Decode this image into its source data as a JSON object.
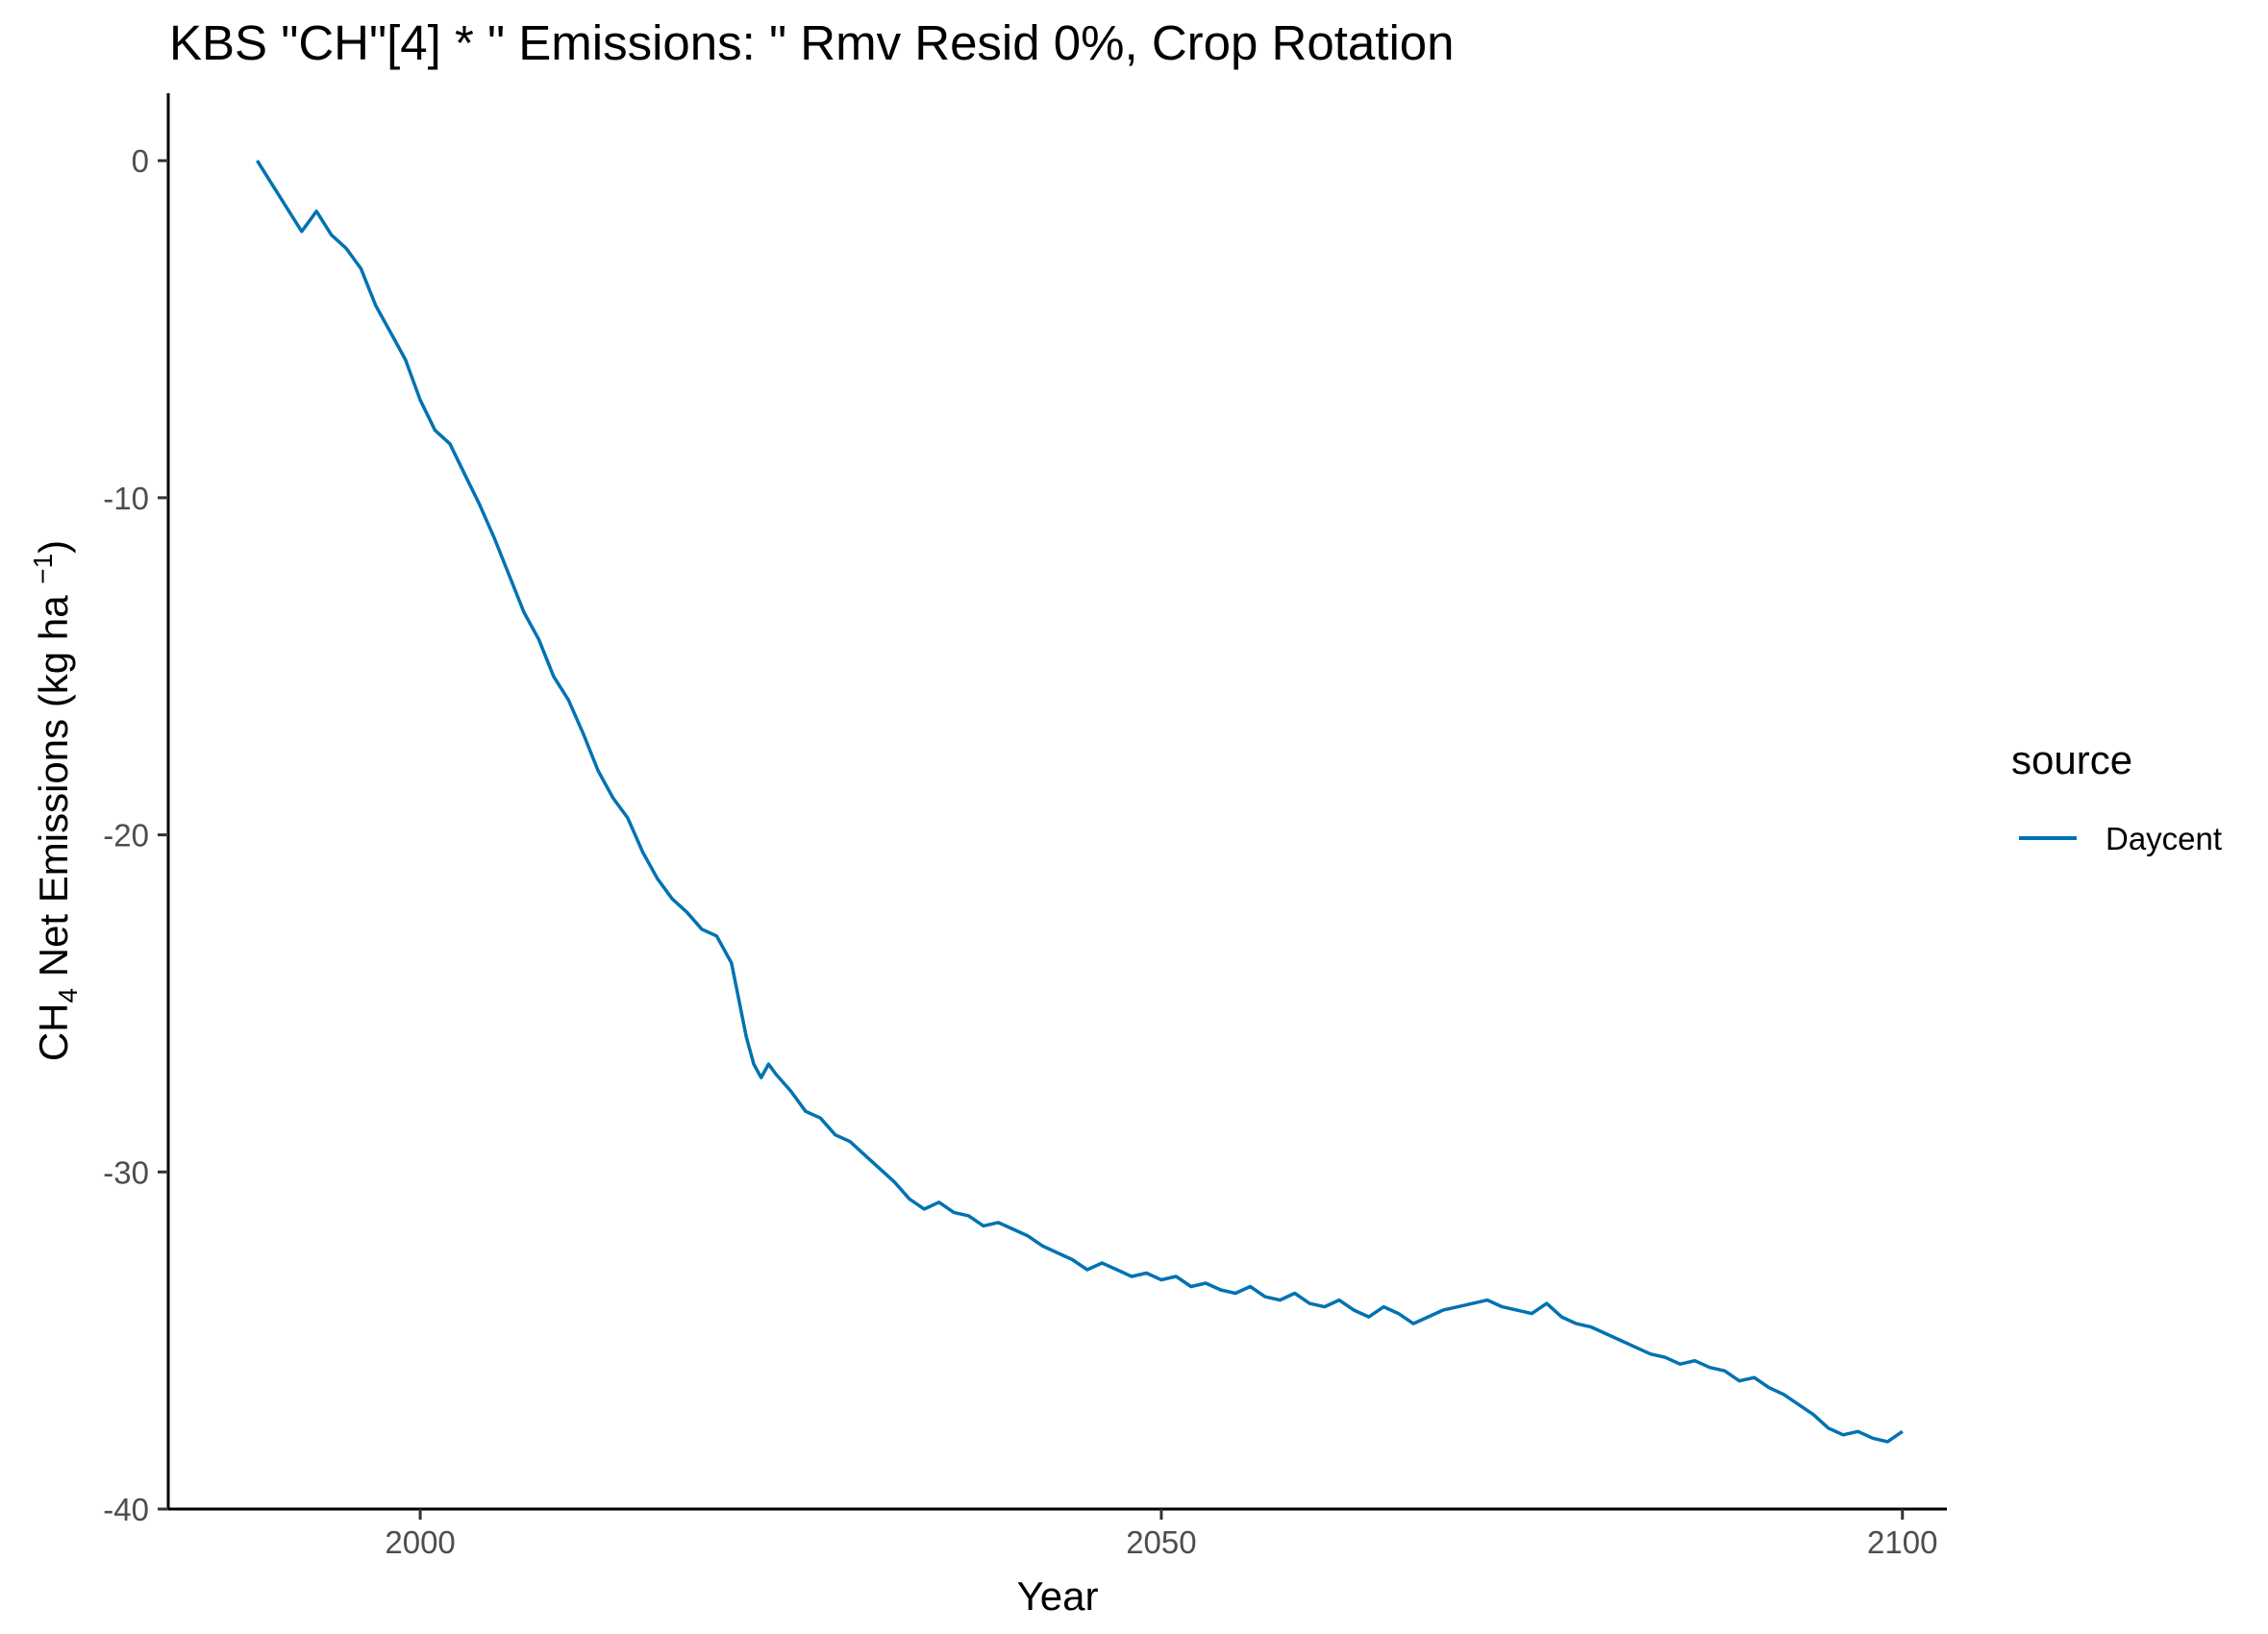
{
  "chart_data": {
    "type": "line",
    "title": "KBS \"CH\"[4] * \" Emissions: \" Rmv Resid 0%, Crop Rotation",
    "xlabel": "Year",
    "ylabel": {
      "main": "CH",
      "sub": "4",
      "rest": " Net Emissions (kg ha ",
      "sup": "−1",
      "close": ")"
    },
    "xlim": [
      1983,
      2103
    ],
    "ylim": [
      -40,
      2
    ],
    "x_ticks": [
      2000,
      2050,
      2100
    ],
    "y_ticks": [
      0,
      -10,
      -20,
      -30,
      -40
    ],
    "x_tick_labels": [
      "2000",
      "2050",
      "2100"
    ],
    "y_tick_labels": [
      "0",
      "-10",
      "-20",
      "-30",
      "-40"
    ],
    "grid": false,
    "legend": {
      "title": "source",
      "position": "right",
      "entries": [
        {
          "label": "Daycent",
          "color": "#0072B2"
        }
      ]
    },
    "series": [
      {
        "name": "Daycent",
        "color": "#0072B2",
        "x": [
          1989,
          1990,
          1991,
          1992,
          1993,
          1994,
          1995,
          1996,
          1997,
          1998,
          1999,
          2000,
          2001,
          2002,
          2003,
          2004,
          2005,
          2006,
          2007,
          2008,
          2009,
          2010,
          2011,
          2012,
          2013,
          2014,
          2015,
          2016,
          2017,
          2018,
          2019,
          2020,
          2021,
          2022,
          2022.5,
          2023,
          2023.5,
          2024,
          2025,
          2026,
          2027,
          2028,
          2029,
          2030,
          2031,
          2032,
          2033,
          2034,
          2035,
          2036,
          2037,
          2038,
          2039,
          2040,
          2041,
          2042,
          2043,
          2044,
          2045,
          2046,
          2047,
          2048,
          2049,
          2050,
          2051,
          2052,
          2053,
          2054,
          2055,
          2056,
          2057,
          2058,
          2059,
          2060,
          2061,
          2062,
          2063,
          2064,
          2065,
          2066,
          2067,
          2068,
          2069,
          2070,
          2071,
          2072,
          2073,
          2074,
          2075,
          2076,
          2077,
          2078,
          2079,
          2080,
          2081,
          2082,
          2083,
          2084,
          2085,
          2086,
          2087,
          2088,
          2089,
          2090,
          2091,
          2092,
          2093,
          2094,
          2095,
          2096,
          2097,
          2098,
          2099,
          2100
        ],
        "values": [
          0.0,
          -0.7,
          -1.4,
          -2.1,
          -1.5,
          -2.2,
          -2.6,
          -3.2,
          -4.3,
          -5.1,
          -5.9,
          -7.1,
          -8.0,
          -8.4,
          -9.3,
          -10.2,
          -11.2,
          -12.3,
          -13.4,
          -14.2,
          -15.3,
          -16.0,
          -17.0,
          -18.1,
          -18.9,
          -19.5,
          -20.5,
          -21.3,
          -21.9,
          -22.3,
          -22.8,
          -23.0,
          -23.8,
          -26.0,
          -26.8,
          -27.2,
          -26.8,
          -27.1,
          -27.6,
          -28.2,
          -28.4,
          -28.9,
          -29.1,
          -29.5,
          -29.9,
          -30.3,
          -30.8,
          -31.1,
          -30.9,
          -31.2,
          -31.3,
          -31.6,
          -31.5,
          -31.7,
          -31.9,
          -32.2,
          -32.4,
          -32.6,
          -32.9,
          -32.7,
          -32.9,
          -33.1,
          -33.0,
          -33.2,
          -33.1,
          -33.4,
          -33.3,
          -33.5,
          -33.6,
          -33.4,
          -33.7,
          -33.8,
          -33.6,
          -33.9,
          -34.0,
          -33.8,
          -34.1,
          -34.3,
          -34.0,
          -34.2,
          -34.5,
          -34.3,
          -34.1,
          -34.0,
          -33.9,
          -33.8,
          -34.0,
          -34.1,
          -34.2,
          -33.9,
          -34.3,
          -34.5,
          -34.6,
          -34.8,
          -35.0,
          -35.2,
          -35.4,
          -35.5,
          -35.7,
          -35.6,
          -35.8,
          -35.9,
          -36.2,
          -36.1,
          -36.4,
          -36.6,
          -36.9,
          -37.2,
          -37.6,
          -37.8,
          -37.7,
          -37.9,
          -38.0,
          -37.7
        ]
      }
    ]
  }
}
